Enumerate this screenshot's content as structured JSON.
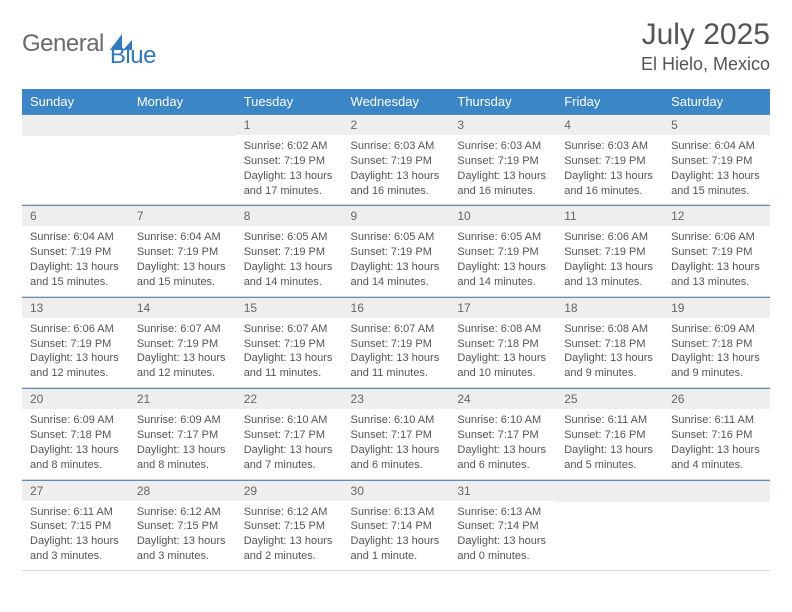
{
  "brand": {
    "name_a": "General",
    "name_b": "Blue"
  },
  "title": {
    "month": "July 2025",
    "location": "El Hielo, Mexico"
  },
  "colors": {
    "header_bg": "#3b86c7",
    "header_text": "#ffffff",
    "daynum_bg": "#eeeeee",
    "daynum_text": "#666666",
    "body_text": "#555555",
    "cell_border_top": "#5a8fb8",
    "row_divider": "#d8d8d8",
    "logo_gray": "#6a6a6a",
    "logo_blue": "#2f7ac0",
    "bg": "#ffffff"
  },
  "typography": {
    "month_title_pt": 30,
    "location_pt": 18,
    "weekday_pt": 13,
    "daynum_pt": 12,
    "cell_body_pt": 11,
    "logo_pt": 24
  },
  "weekdays": [
    "Sunday",
    "Monday",
    "Tuesday",
    "Wednesday",
    "Thursday",
    "Friday",
    "Saturday"
  ],
  "weeks": [
    [
      null,
      null,
      {
        "n": "1",
        "sunrise": "Sunrise: 6:02 AM",
        "sunset": "Sunset: 7:19 PM",
        "daylight": "Daylight: 13 hours and 17 minutes."
      },
      {
        "n": "2",
        "sunrise": "Sunrise: 6:03 AM",
        "sunset": "Sunset: 7:19 PM",
        "daylight": "Daylight: 13 hours and 16 minutes."
      },
      {
        "n": "3",
        "sunrise": "Sunrise: 6:03 AM",
        "sunset": "Sunset: 7:19 PM",
        "daylight": "Daylight: 13 hours and 16 minutes."
      },
      {
        "n": "4",
        "sunrise": "Sunrise: 6:03 AM",
        "sunset": "Sunset: 7:19 PM",
        "daylight": "Daylight: 13 hours and 16 minutes."
      },
      {
        "n": "5",
        "sunrise": "Sunrise: 6:04 AM",
        "sunset": "Sunset: 7:19 PM",
        "daylight": "Daylight: 13 hours and 15 minutes."
      }
    ],
    [
      {
        "n": "6",
        "sunrise": "Sunrise: 6:04 AM",
        "sunset": "Sunset: 7:19 PM",
        "daylight": "Daylight: 13 hours and 15 minutes."
      },
      {
        "n": "7",
        "sunrise": "Sunrise: 6:04 AM",
        "sunset": "Sunset: 7:19 PM",
        "daylight": "Daylight: 13 hours and 15 minutes."
      },
      {
        "n": "8",
        "sunrise": "Sunrise: 6:05 AM",
        "sunset": "Sunset: 7:19 PM",
        "daylight": "Daylight: 13 hours and 14 minutes."
      },
      {
        "n": "9",
        "sunrise": "Sunrise: 6:05 AM",
        "sunset": "Sunset: 7:19 PM",
        "daylight": "Daylight: 13 hours and 14 minutes."
      },
      {
        "n": "10",
        "sunrise": "Sunrise: 6:05 AM",
        "sunset": "Sunset: 7:19 PM",
        "daylight": "Daylight: 13 hours and 14 minutes."
      },
      {
        "n": "11",
        "sunrise": "Sunrise: 6:06 AM",
        "sunset": "Sunset: 7:19 PM",
        "daylight": "Daylight: 13 hours and 13 minutes."
      },
      {
        "n": "12",
        "sunrise": "Sunrise: 6:06 AM",
        "sunset": "Sunset: 7:19 PM",
        "daylight": "Daylight: 13 hours and 13 minutes."
      }
    ],
    [
      {
        "n": "13",
        "sunrise": "Sunrise: 6:06 AM",
        "sunset": "Sunset: 7:19 PM",
        "daylight": "Daylight: 13 hours and 12 minutes."
      },
      {
        "n": "14",
        "sunrise": "Sunrise: 6:07 AM",
        "sunset": "Sunset: 7:19 PM",
        "daylight": "Daylight: 13 hours and 12 minutes."
      },
      {
        "n": "15",
        "sunrise": "Sunrise: 6:07 AM",
        "sunset": "Sunset: 7:19 PM",
        "daylight": "Daylight: 13 hours and 11 minutes."
      },
      {
        "n": "16",
        "sunrise": "Sunrise: 6:07 AM",
        "sunset": "Sunset: 7:19 PM",
        "daylight": "Daylight: 13 hours and 11 minutes."
      },
      {
        "n": "17",
        "sunrise": "Sunrise: 6:08 AM",
        "sunset": "Sunset: 7:18 PM",
        "daylight": "Daylight: 13 hours and 10 minutes."
      },
      {
        "n": "18",
        "sunrise": "Sunrise: 6:08 AM",
        "sunset": "Sunset: 7:18 PM",
        "daylight": "Daylight: 13 hours and 9 minutes."
      },
      {
        "n": "19",
        "sunrise": "Sunrise: 6:09 AM",
        "sunset": "Sunset: 7:18 PM",
        "daylight": "Daylight: 13 hours and 9 minutes."
      }
    ],
    [
      {
        "n": "20",
        "sunrise": "Sunrise: 6:09 AM",
        "sunset": "Sunset: 7:18 PM",
        "daylight": "Daylight: 13 hours and 8 minutes."
      },
      {
        "n": "21",
        "sunrise": "Sunrise: 6:09 AM",
        "sunset": "Sunset: 7:17 PM",
        "daylight": "Daylight: 13 hours and 8 minutes."
      },
      {
        "n": "22",
        "sunrise": "Sunrise: 6:10 AM",
        "sunset": "Sunset: 7:17 PM",
        "daylight": "Daylight: 13 hours and 7 minutes."
      },
      {
        "n": "23",
        "sunrise": "Sunrise: 6:10 AM",
        "sunset": "Sunset: 7:17 PM",
        "daylight": "Daylight: 13 hours and 6 minutes."
      },
      {
        "n": "24",
        "sunrise": "Sunrise: 6:10 AM",
        "sunset": "Sunset: 7:17 PM",
        "daylight": "Daylight: 13 hours and 6 minutes."
      },
      {
        "n": "25",
        "sunrise": "Sunrise: 6:11 AM",
        "sunset": "Sunset: 7:16 PM",
        "daylight": "Daylight: 13 hours and 5 minutes."
      },
      {
        "n": "26",
        "sunrise": "Sunrise: 6:11 AM",
        "sunset": "Sunset: 7:16 PM",
        "daylight": "Daylight: 13 hours and 4 minutes."
      }
    ],
    [
      {
        "n": "27",
        "sunrise": "Sunrise: 6:11 AM",
        "sunset": "Sunset: 7:15 PM",
        "daylight": "Daylight: 13 hours and 3 minutes."
      },
      {
        "n": "28",
        "sunrise": "Sunrise: 6:12 AM",
        "sunset": "Sunset: 7:15 PM",
        "daylight": "Daylight: 13 hours and 3 minutes."
      },
      {
        "n": "29",
        "sunrise": "Sunrise: 6:12 AM",
        "sunset": "Sunset: 7:15 PM",
        "daylight": "Daylight: 13 hours and 2 minutes."
      },
      {
        "n": "30",
        "sunrise": "Sunrise: 6:13 AM",
        "sunset": "Sunset: 7:14 PM",
        "daylight": "Daylight: 13 hours and 1 minute."
      },
      {
        "n": "31",
        "sunrise": "Sunrise: 6:13 AM",
        "sunset": "Sunset: 7:14 PM",
        "daylight": "Daylight: 13 hours and 0 minutes."
      },
      null,
      null
    ]
  ]
}
